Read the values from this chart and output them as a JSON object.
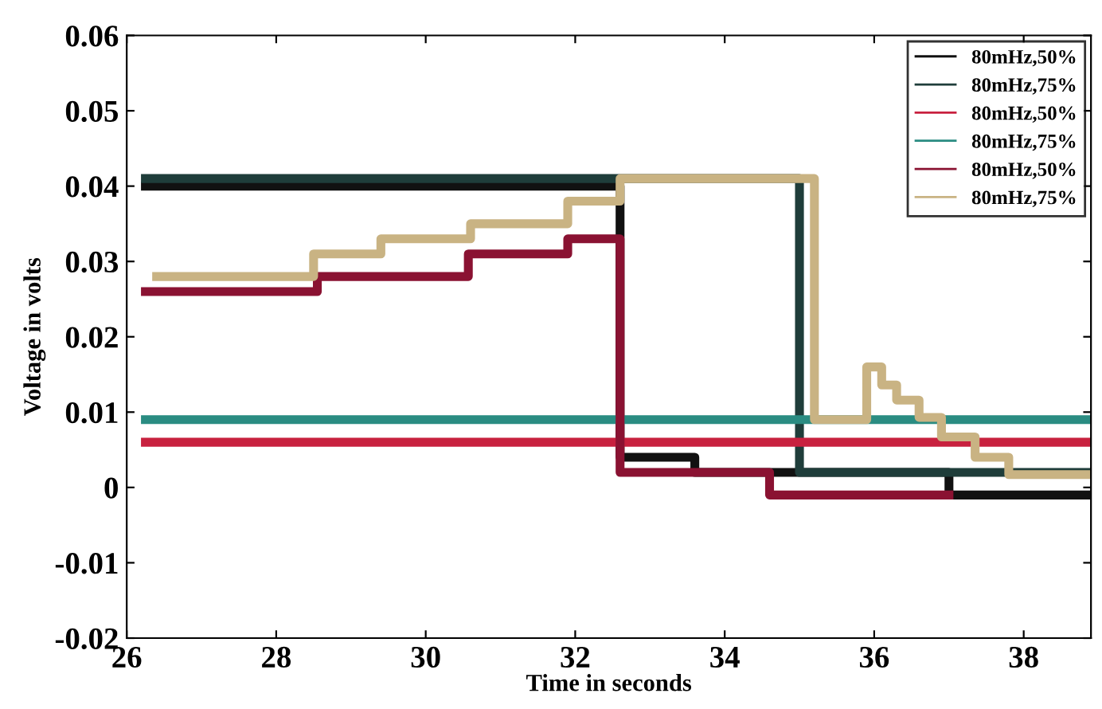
{
  "chart_data": {
    "type": "step",
    "xlabel": "Time in seconds",
    "ylabel": "Voltage in volts",
    "xlim": [
      26,
      38.9
    ],
    "xticks": [
      26,
      28,
      30,
      32,
      34,
      36,
      38
    ],
    "ylim": [
      -0.02,
      0.06
    ],
    "yticks": [
      -0.02,
      -0.01,
      0,
      0.01,
      0.02,
      0.03,
      0.04,
      0.05,
      0.06
    ],
    "legend": "top right",
    "grid": false,
    "series": [
      {
        "name": "80mHz,50%",
        "color": "#111111",
        "x": [
          26.25,
          32.6,
          33.6,
          35.0,
          37.0,
          38.9
        ],
        "values": [
          0.04,
          0.004,
          0.002,
          0.002,
          -0.001,
          -0.001
        ]
      },
      {
        "name": "80mHz,75%",
        "color": "#1f3d3a",
        "x": [
          26.25,
          35.0,
          38.9
        ],
        "values": [
          0.041,
          0.002,
          0.002
        ]
      },
      {
        "name": "80mHz,50%",
        "color": "#c8213f",
        "x": [
          26.25,
          38.9
        ],
        "values": [
          0.006,
          0.006
        ]
      },
      {
        "name": "80mHz,75%",
        "color": "#2a8c82",
        "x": [
          26.25,
          38.9
        ],
        "values": [
          0.009,
          0.009
        ]
      },
      {
        "name": "80mHz,50%",
        "color": "#8a1232",
        "x": [
          26.25,
          28.55,
          30.57,
          31.9,
          32.6,
          33.6,
          34.6,
          37.0
        ],
        "values": [
          0.026,
          0.028,
          0.031,
          0.033,
          0.002,
          0.002,
          -0.001,
          -0.001
        ]
      },
      {
        "name": "80mHz,75%",
        "color": "#c9b383",
        "x": [
          26.4,
          28.5,
          29.4,
          30.6,
          31.9,
          32.6,
          35.2,
          35.9,
          36.1,
          36.3,
          36.6,
          36.9,
          37.35,
          37.8,
          38.9
        ],
        "values": [
          0.028,
          0.031,
          0.033,
          0.035,
          0.038,
          0.041,
          0.009,
          0.016,
          0.0136,
          0.0116,
          0.0093,
          0.0067,
          0.004,
          0.0017,
          0.0017
        ]
      }
    ]
  }
}
